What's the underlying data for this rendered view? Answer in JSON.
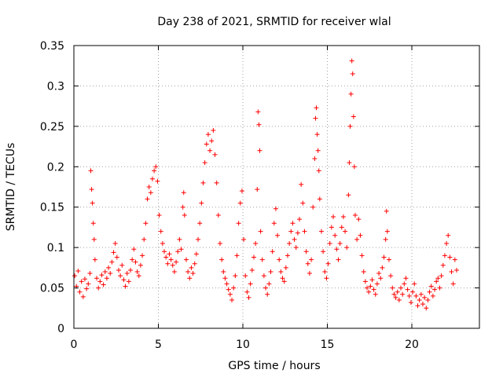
{
  "chart_data": {
    "type": "scatter",
    "title": "Day 238 of 2021, SRMTID for receiver wlal",
    "xlabel": "GPS time / hours",
    "ylabel": "SRMTID / TECUs",
    "xlim": [
      0,
      24
    ],
    "ylim": [
      0,
      0.35
    ],
    "grid": true,
    "marker": "+",
    "color": "#ff0000",
    "x_ticks": [
      {
        "value": 0,
        "label": "0"
      },
      {
        "value": 5,
        "label": "5"
      },
      {
        "value": 10,
        "label": "10"
      },
      {
        "value": 15,
        "label": "15"
      },
      {
        "value": 20,
        "label": "20"
      }
    ],
    "y_ticks": [
      {
        "value": 0,
        "label": "0"
      },
      {
        "value": 0.05,
        "label": "0.05"
      },
      {
        "value": 0.1,
        "label": "0.1"
      },
      {
        "value": 0.15,
        "label": "0.15"
      },
      {
        "value": 0.2,
        "label": "0.2"
      },
      {
        "value": 0.25,
        "label": "0.25"
      },
      {
        "value": 0.3,
        "label": "0.3"
      },
      {
        "value": 0.35,
        "label": "0.35"
      }
    ],
    "series": [
      {
        "name": "SRMTID",
        "points": [
          [
            0.05,
            0.065
          ],
          [
            0.15,
            0.052
          ],
          [
            0.25,
            0.071
          ],
          [
            0.35,
            0.045
          ],
          [
            0.45,
            0.058
          ],
          [
            0.55,
            0.039
          ],
          [
            0.65,
            0.061
          ],
          [
            0.75,
            0.049
          ],
          [
            0.85,
            0.055
          ],
          [
            0.95,
            0.068
          ],
          [
            1.0,
            0.195
          ],
          [
            1.05,
            0.172
          ],
          [
            1.1,
            0.155
          ],
          [
            1.15,
            0.13
          ],
          [
            1.2,
            0.11
          ],
          [
            1.25,
            0.085
          ],
          [
            1.35,
            0.062
          ],
          [
            1.45,
            0.05
          ],
          [
            1.55,
            0.058
          ],
          [
            1.65,
            0.066
          ],
          [
            1.75,
            0.054
          ],
          [
            1.85,
            0.07
          ],
          [
            1.95,
            0.062
          ],
          [
            2.05,
            0.075
          ],
          [
            2.15,
            0.068
          ],
          [
            2.25,
            0.082
          ],
          [
            2.35,
            0.094
          ],
          [
            2.45,
            0.105
          ],
          [
            2.55,
            0.088
          ],
          [
            2.65,
            0.072
          ],
          [
            2.75,
            0.065
          ],
          [
            2.85,
            0.078
          ],
          [
            2.95,
            0.06
          ],
          [
            3.05,
            0.052
          ],
          [
            3.15,
            0.068
          ],
          [
            3.25,
            0.058
          ],
          [
            3.35,
            0.072
          ],
          [
            3.45,
            0.085
          ],
          [
            3.55,
            0.098
          ],
          [
            3.65,
            0.082
          ],
          [
            3.75,
            0.07
          ],
          [
            3.85,
            0.065
          ],
          [
            3.95,
            0.078
          ],
          [
            4.05,
            0.09
          ],
          [
            4.15,
            0.11
          ],
          [
            4.25,
            0.13
          ],
          [
            4.35,
            0.16
          ],
          [
            4.45,
            0.175
          ],
          [
            4.55,
            0.168
          ],
          [
            4.65,
            0.185
          ],
          [
            4.75,
            0.195
          ],
          [
            4.85,
            0.2
          ],
          [
            4.95,
            0.182
          ],
          [
            5.05,
            0.14
          ],
          [
            5.15,
            0.12
          ],
          [
            5.25,
            0.105
          ],
          [
            5.35,
            0.095
          ],
          [
            5.45,
            0.088
          ],
          [
            5.55,
            0.08
          ],
          [
            5.65,
            0.092
          ],
          [
            5.75,
            0.085
          ],
          [
            5.85,
            0.078
          ],
          [
            5.95,
            0.07
          ],
          [
            6.05,
            0.082
          ],
          [
            6.15,
            0.095
          ],
          [
            6.25,
            0.11
          ],
          [
            6.35,
            0.098
          ],
          [
            6.45,
            0.15
          ],
          [
            6.5,
            0.168
          ],
          [
            6.55,
            0.14
          ],
          [
            6.65,
            0.085
          ],
          [
            6.75,
            0.07
          ],
          [
            6.85,
            0.062
          ],
          [
            6.95,
            0.075
          ],
          [
            7.05,
            0.068
          ],
          [
            7.15,
            0.08
          ],
          [
            7.25,
            0.092
          ],
          [
            7.35,
            0.11
          ],
          [
            7.45,
            0.13
          ],
          [
            7.55,
            0.155
          ],
          [
            7.65,
            0.18
          ],
          [
            7.75,
            0.205
          ],
          [
            7.85,
            0.228
          ],
          [
            7.95,
            0.24
          ],
          [
            8.05,
            0.22
          ],
          [
            8.15,
            0.232
          ],
          [
            8.25,
            0.245
          ],
          [
            8.35,
            0.215
          ],
          [
            8.45,
            0.18
          ],
          [
            8.55,
            0.14
          ],
          [
            8.65,
            0.105
          ],
          [
            8.75,
            0.085
          ],
          [
            8.85,
            0.07
          ],
          [
            8.95,
            0.062
          ],
          [
            9.05,
            0.055
          ],
          [
            9.15,
            0.048
          ],
          [
            9.25,
            0.042
          ],
          [
            9.35,
            0.035
          ],
          [
            9.45,
            0.05
          ],
          [
            9.55,
            0.065
          ],
          [
            9.65,
            0.09
          ],
          [
            9.75,
            0.13
          ],
          [
            9.85,
            0.155
          ],
          [
            9.95,
            0.17
          ],
          [
            10.05,
            0.11
          ],
          [
            10.15,
            0.065
          ],
          [
            10.25,
            0.045
          ],
          [
            10.35,
            0.038
          ],
          [
            10.45,
            0.055
          ],
          [
            10.55,
            0.072
          ],
          [
            10.65,
            0.088
          ],
          [
            10.75,
            0.105
          ],
          [
            10.85,
            0.172
          ],
          [
            10.9,
            0.268
          ],
          [
            10.95,
            0.252
          ],
          [
            11.0,
            0.22
          ],
          [
            11.05,
            0.12
          ],
          [
            11.15,
            0.085
          ],
          [
            11.25,
            0.065
          ],
          [
            11.35,
            0.05
          ],
          [
            11.45,
            0.042
          ],
          [
            11.55,
            0.055
          ],
          [
            11.65,
            0.07
          ],
          [
            11.75,
            0.095
          ],
          [
            11.85,
            0.13
          ],
          [
            11.95,
            0.148
          ],
          [
            12.05,
            0.115
          ],
          [
            12.15,
            0.085
          ],
          [
            12.25,
            0.07
          ],
          [
            12.35,
            0.062
          ],
          [
            12.45,
            0.058
          ],
          [
            12.55,
            0.075
          ],
          [
            12.65,
            0.09
          ],
          [
            12.75,
            0.105
          ],
          [
            12.85,
            0.12
          ],
          [
            12.95,
            0.13
          ],
          [
            13.05,
            0.11
          ],
          [
            13.15,
            0.1
          ],
          [
            13.25,
            0.118
          ],
          [
            13.35,
            0.135
          ],
          [
            13.45,
            0.178
          ],
          [
            13.55,
            0.155
          ],
          [
            13.65,
            0.12
          ],
          [
            13.75,
            0.095
          ],
          [
            13.85,
            0.08
          ],
          [
            13.95,
            0.068
          ],
          [
            14.05,
            0.085
          ],
          [
            14.15,
            0.15
          ],
          [
            14.25,
            0.21
          ],
          [
            14.3,
            0.26
          ],
          [
            14.35,
            0.273
          ],
          [
            14.4,
            0.24
          ],
          [
            14.45,
            0.22
          ],
          [
            14.5,
            0.195
          ],
          [
            14.55,
            0.16
          ],
          [
            14.65,
            0.12
          ],
          [
            14.75,
            0.095
          ],
          [
            14.85,
            0.07
          ],
          [
            14.95,
            0.062
          ],
          [
            15.05,
            0.08
          ],
          [
            15.15,
            0.105
          ],
          [
            15.25,
            0.125
          ],
          [
            15.35,
            0.138
          ],
          [
            15.45,
            0.115
          ],
          [
            15.55,
            0.098
          ],
          [
            15.65,
            0.085
          ],
          [
            15.75,
            0.105
          ],
          [
            15.85,
            0.125
          ],
          [
            15.95,
            0.138
          ],
          [
            16.05,
            0.12
          ],
          [
            16.15,
            0.1
          ],
          [
            16.25,
            0.165
          ],
          [
            16.3,
            0.205
          ],
          [
            16.35,
            0.25
          ],
          [
            16.4,
            0.29
          ],
          [
            16.45,
            0.331
          ],
          [
            16.5,
            0.315
          ],
          [
            16.55,
            0.262
          ],
          [
            16.6,
            0.2
          ],
          [
            16.65,
            0.14
          ],
          [
            16.75,
            0.11
          ],
          [
            16.85,
            0.135
          ],
          [
            16.95,
            0.115
          ],
          [
            17.05,
            0.09
          ],
          [
            17.15,
            0.07
          ],
          [
            17.25,
            0.058
          ],
          [
            17.35,
            0.05
          ],
          [
            17.45,
            0.045
          ],
          [
            17.55,
            0.052
          ],
          [
            17.65,
            0.06
          ],
          [
            17.75,
            0.048
          ],
          [
            17.85,
            0.042
          ],
          [
            17.95,
            0.055
          ],
          [
            18.05,
            0.068
          ],
          [
            18.15,
            0.062
          ],
          [
            18.25,
            0.075
          ],
          [
            18.35,
            0.088
          ],
          [
            18.45,
            0.11
          ],
          [
            18.5,
            0.145
          ],
          [
            18.55,
            0.12
          ],
          [
            18.65,
            0.085
          ],
          [
            18.75,
            0.065
          ],
          [
            18.85,
            0.05
          ],
          [
            18.95,
            0.042
          ],
          [
            19.05,
            0.038
          ],
          [
            19.15,
            0.045
          ],
          [
            19.25,
            0.035
          ],
          [
            19.35,
            0.05
          ],
          [
            19.45,
            0.042
          ],
          [
            19.55,
            0.055
          ],
          [
            19.65,
            0.062
          ],
          [
            19.75,
            0.048
          ],
          [
            19.85,
            0.04
          ],
          [
            19.95,
            0.032
          ],
          [
            20.05,
            0.045
          ],
          [
            20.15,
            0.055
          ],
          [
            20.25,
            0.04
          ],
          [
            20.35,
            0.028
          ],
          [
            20.45,
            0.035
          ],
          [
            20.55,
            0.042
          ],
          [
            20.65,
            0.03
          ],
          [
            20.75,
            0.038
          ],
          [
            20.85,
            0.025
          ],
          [
            20.95,
            0.035
          ],
          [
            21.05,
            0.045
          ],
          [
            21.15,
            0.052
          ],
          [
            21.25,
            0.04
          ],
          [
            21.35,
            0.048
          ],
          [
            21.45,
            0.058
          ],
          [
            21.55,
            0.062
          ],
          [
            21.65,
            0.05
          ],
          [
            21.75,
            0.065
          ],
          [
            21.85,
            0.078
          ],
          [
            21.95,
            0.09
          ],
          [
            22.05,
            0.105
          ],
          [
            22.15,
            0.115
          ],
          [
            22.25,
            0.088
          ],
          [
            22.35,
            0.07
          ],
          [
            22.45,
            0.055
          ],
          [
            22.55,
            0.085
          ],
          [
            22.65,
            0.072
          ]
        ]
      }
    ]
  }
}
